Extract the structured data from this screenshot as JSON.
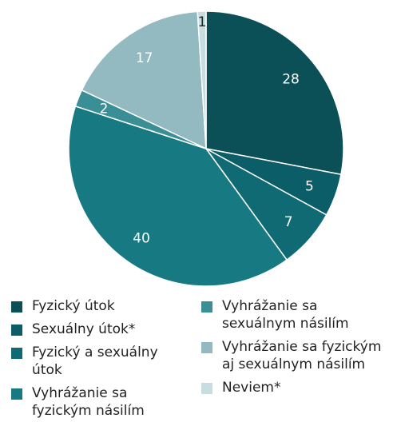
{
  "chart_data": {
    "type": "pie",
    "title": "",
    "slices": [
      {
        "label": "Fyzický útok",
        "value": 28,
        "display": "28",
        "color": "#0b4f57"
      },
      {
        "label": "Sexuálny útok*",
        "value": 5,
        "display": "5",
        "color": "#0b5e68"
      },
      {
        "label": "Fyzický a sexuálny útok",
        "value": 7,
        "display": "7",
        "color": "#106a73"
      },
      {
        "label": "Vyhrážanie sa fyzickým násilím",
        "value": 40,
        "display": "40",
        "color": "#177a82"
      },
      {
        "label": "Vyhrážanie sa sexuálnym násilím",
        "value": 2,
        "display": "2",
        "color": "#3a8e95"
      },
      {
        "label": "Vyhrážanie sa fyzickým aj sexuálnym násilím",
        "value": 17,
        "display": "17",
        "color": "#93b9c1"
      },
      {
        "label": "Neviem*",
        "value": 1,
        "display": "1",
        "color": "#c7dde0"
      }
    ],
    "legend_placement": "bottom"
  },
  "legend": {
    "left": [
      {
        "lines": [
          "Fyzický útok"
        ],
        "color": "#0b4f57"
      },
      {
        "lines": [
          "Sexuálny útok*"
        ],
        "color": "#0b5e68"
      },
      {
        "lines": [
          "Fyzický a sexuálny",
          "útok"
        ],
        "color": "#106a73"
      },
      {
        "lines": [
          "Vyhrážanie sa",
          "fyzickým násilím"
        ],
        "color": "#177a82"
      }
    ],
    "right": [
      {
        "lines": [
          "Vyhrážanie sa",
          "sexuálnym násilím"
        ],
        "color": "#3a8e95"
      },
      {
        "lines": [
          "Vyhrážanie sa fyzickým",
          "aj sexuálnym násilím"
        ],
        "color": "#93b9c1"
      },
      {
        "lines": [
          "Neviem*"
        ],
        "color": "#c7dde0"
      }
    ]
  }
}
